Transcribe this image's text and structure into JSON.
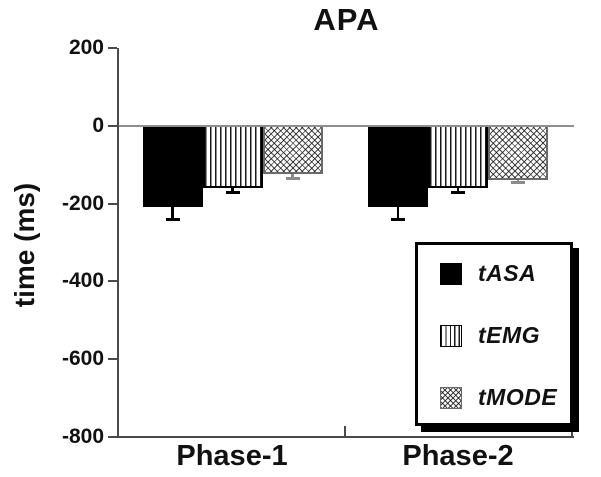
{
  "chart_data": {
    "type": "bar",
    "title": "APA",
    "xlabel": "",
    "ylabel": "time (ms)",
    "categories": [
      "Phase-1",
      "Phase-2"
    ],
    "series": [
      {
        "name": "tASA",
        "pattern": "solid-black",
        "values": [
          -210,
          -210
        ],
        "errors": [
          30,
          30
        ],
        "error_color": "#000000"
      },
      {
        "name": "tEMG",
        "pattern": "vertical-stripes",
        "values": [
          -160,
          -160
        ],
        "errors": [
          10,
          10
        ],
        "error_color": "#000000"
      },
      {
        "name": "tMODE",
        "pattern": "diamond-crosshatch",
        "values": [
          -125,
          -140
        ],
        "errors": [
          10,
          5
        ],
        "error_color": "#8a8a8a"
      }
    ],
    "ylim": [
      -800,
      200
    ],
    "yticks": [
      200,
      0,
      -200,
      -400,
      -600,
      -800
    ],
    "grid": false,
    "error_bars": "extend-below-bar",
    "legend_position": "lower-right",
    "zero_line_color": "#8f8f8f",
    "axis_color": "#4a4a4a"
  }
}
